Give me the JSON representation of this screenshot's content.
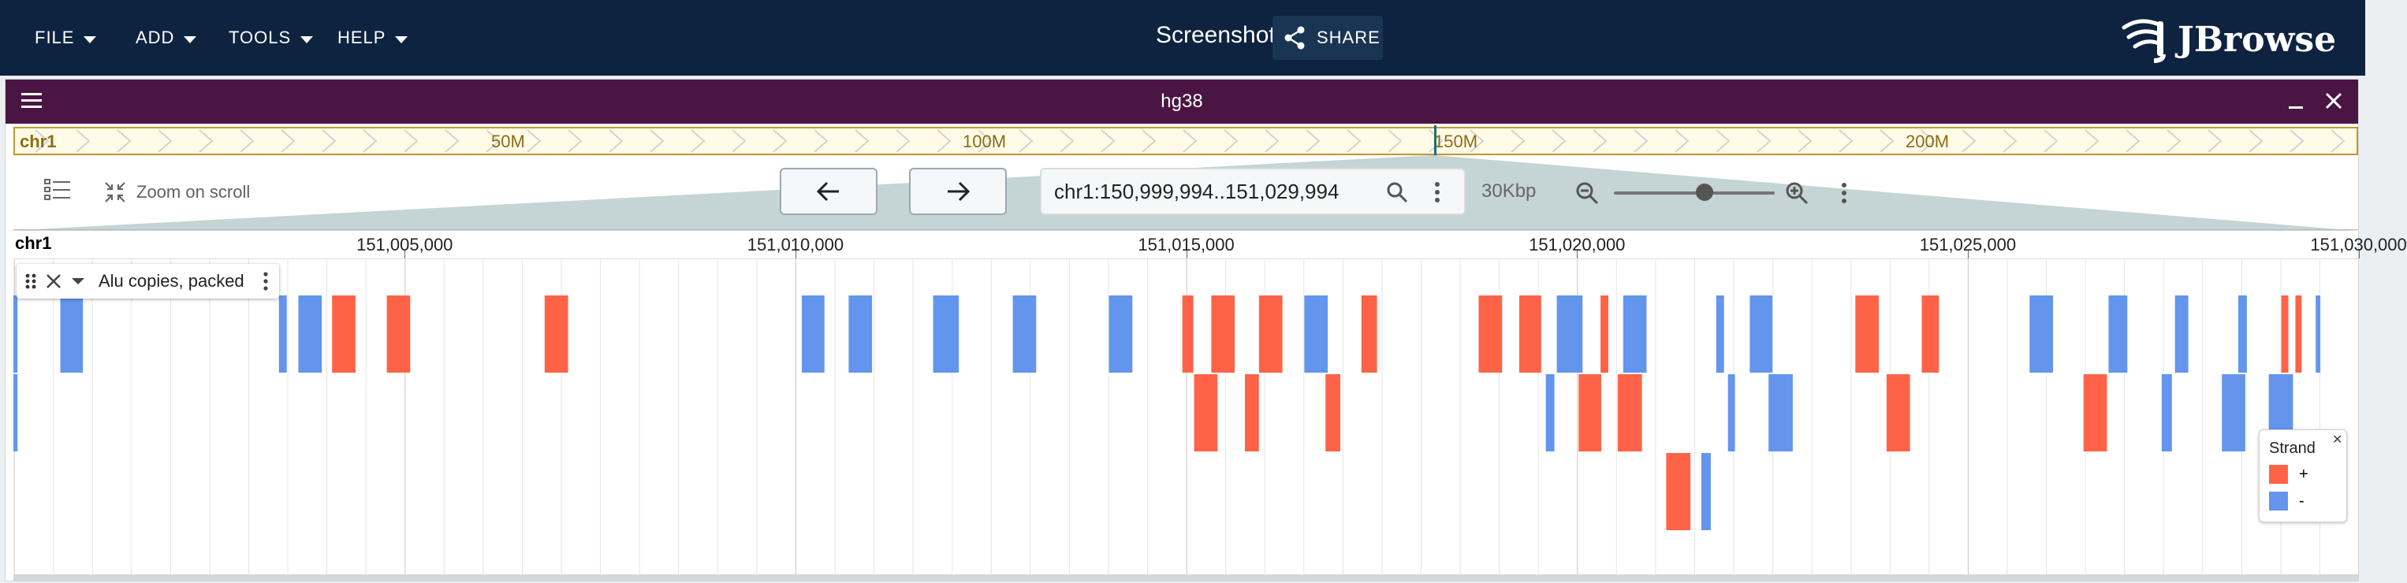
{
  "menu": [
    {
      "label": "FILE"
    },
    {
      "label": "ADD"
    },
    {
      "label": "TOOLS"
    },
    {
      "label": "HELP"
    }
  ],
  "session": {
    "title": "Screenshot",
    "share_label": "SHARE"
  },
  "logo": {
    "text": "JBrowse"
  },
  "view": {
    "assembly": "hg38",
    "overview": {
      "chr": "chr1",
      "labels": [
        "50M",
        "100M",
        "150M",
        "200M"
      ]
    },
    "toolbar": {
      "zoom_on_scroll_label": "Zoom on scroll",
      "locstring": "chr1:150,999,994..151,029,994",
      "bp_per_view": "30Kbp"
    },
    "ruler": {
      "chr": "chr1",
      "ticks": [
        "151,005,000",
        "151,010,000",
        "151,015,000",
        "151,020,000",
        "151,025,000",
        "151,030,000"
      ]
    },
    "track": {
      "name": "Alu copies, packed",
      "legend": {
        "title": "Strand",
        "plus_label": "+",
        "minus_label": "-"
      },
      "colors": {
        "plus": "#ff6347",
        "minus": "#6495ed"
      },
      "features": [
        {
          "start": 150999994,
          "end": 151000046,
          "strand": "-",
          "row": 0
        },
        {
          "start": 150999994,
          "end": 151000046,
          "strand": "-",
          "row": 1
        },
        {
          "start": 151000594,
          "end": 151000884,
          "strand": "-",
          "row": 0
        },
        {
          "start": 151003391,
          "end": 151003491,
          "strand": "-",
          "row": 0
        },
        {
          "start": 151003641,
          "end": 151003941,
          "strand": "-",
          "row": 0
        },
        {
          "start": 151004071,
          "end": 151004371,
          "strand": "+",
          "row": 0
        },
        {
          "start": 151004771,
          "end": 151005071,
          "strand": "+",
          "row": 0
        },
        {
          "start": 151006791,
          "end": 151007091,
          "strand": "+",
          "row": 0
        },
        {
          "start": 151010081,
          "end": 151010371,
          "strand": "-",
          "row": 0
        },
        {
          "start": 151010681,
          "end": 151010981,
          "strand": "-",
          "row": 0
        },
        {
          "start": 151011761,
          "end": 151012091,
          "strand": "-",
          "row": 0
        },
        {
          "start": 151012781,
          "end": 151013081,
          "strand": "-",
          "row": 0
        },
        {
          "start": 151014011,
          "end": 151014311,
          "strand": "-",
          "row": 0
        },
        {
          "start": 151014951,
          "end": 151015091,
          "strand": "+",
          "row": 0
        },
        {
          "start": 151015101,
          "end": 151015401,
          "strand": "+",
          "row": 1
        },
        {
          "start": 151015321,
          "end": 151015621,
          "strand": "+",
          "row": 0
        },
        {
          "start": 151015751,
          "end": 151015931,
          "strand": "+",
          "row": 1
        },
        {
          "start": 151015931,
          "end": 151016231,
          "strand": "+",
          "row": 0
        },
        {
          "start": 151016511,
          "end": 151016811,
          "strand": "-",
          "row": 0
        },
        {
          "start": 151016781,
          "end": 151016971,
          "strand": "+",
          "row": 1
        },
        {
          "start": 151017241,
          "end": 151017441,
          "strand": "+",
          "row": 0
        },
        {
          "start": 151018741,
          "end": 151019041,
          "strand": "+",
          "row": 0
        },
        {
          "start": 151019261,
          "end": 151019541,
          "strand": "+",
          "row": 0
        },
        {
          "start": 151019601,
          "end": 151019711,
          "strand": "-",
          "row": 1
        },
        {
          "start": 151019741,
          "end": 151020071,
          "strand": "-",
          "row": 0
        },
        {
          "start": 151020021,
          "end": 151020311,
          "strand": "+",
          "row": 1
        },
        {
          "start": 151020301,
          "end": 151020401,
          "strand": "+",
          "row": 0
        },
        {
          "start": 151020521,
          "end": 151020831,
          "strand": "+",
          "row": 1
        },
        {
          "start": 151020591,
          "end": 151020891,
          "strand": "-",
          "row": 0
        },
        {
          "start": 151021141,
          "end": 151021451,
          "strand": "+",
          "row": 2
        },
        {
          "start": 151021591,
          "end": 151021711,
          "strand": "-",
          "row": 2
        },
        {
          "start": 151021781,
          "end": 151021881,
          "strand": "-",
          "row": 0
        },
        {
          "start": 151021931,
          "end": 151022021,
          "strand": "-",
          "row": 1
        },
        {
          "start": 151022211,
          "end": 151022501,
          "strand": "-",
          "row": 0
        },
        {
          "start": 151022451,
          "end": 151022761,
          "strand": "-",
          "row": 1
        },
        {
          "start": 151023561,
          "end": 151023861,
          "strand": "+",
          "row": 0
        },
        {
          "start": 151023961,
          "end": 151024261,
          "strand": "+",
          "row": 1
        },
        {
          "start": 151024411,
          "end": 151024631,
          "strand": "+",
          "row": 0
        },
        {
          "start": 151025791,
          "end": 151026091,
          "strand": "-",
          "row": 0
        },
        {
          "start": 151026481,
          "end": 151026781,
          "strand": "+",
          "row": 1
        },
        {
          "start": 151026801,
          "end": 151027041,
          "strand": "-",
          "row": 0
        },
        {
          "start": 151027481,
          "end": 151027611,
          "strand": "-",
          "row": 1
        },
        {
          "start": 151027651,
          "end": 151027821,
          "strand": "-",
          "row": 0
        },
        {
          "start": 151028251,
          "end": 151028551,
          "strand": "-",
          "row": 1
        },
        {
          "start": 151028461,
          "end": 151028571,
          "strand": "-",
          "row": 0
        },
        {
          "start": 151028851,
          "end": 151029161,
          "strand": "-",
          "row": 1
        },
        {
          "start": 151029011,
          "end": 151029101,
          "strand": "+",
          "row": 0
        },
        {
          "start": 151029191,
          "end": 151029271,
          "strand": "+",
          "row": 0
        },
        {
          "start": 151029451,
          "end": 151029511,
          "strand": "-",
          "row": 0
        }
      ]
    }
  }
}
